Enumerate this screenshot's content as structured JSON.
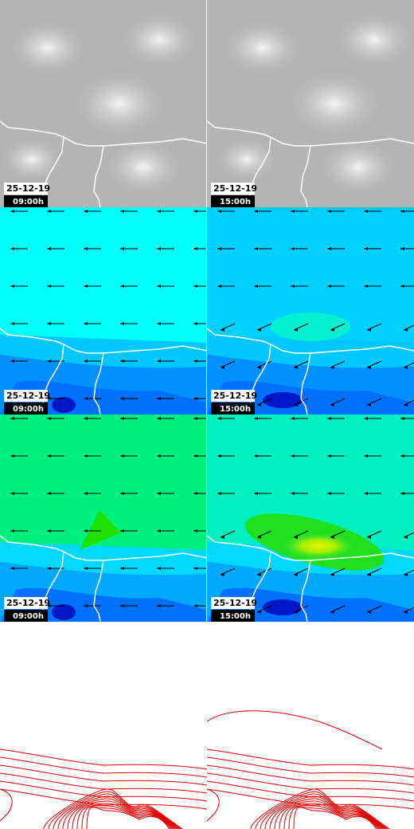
{
  "panels": [
    {
      "date": "25-12-19",
      "time": "09:00h"
    },
    {
      "date": "25-12-19",
      "time": "15:00h"
    },
    {
      "date": "25-12-19",
      "time": "09:00h"
    },
    {
      "date": "25-12-19",
      "time": "15:00h"
    },
    {
      "date": "25-12-19",
      "time": "09:00h"
    },
    {
      "date": "25-12-19",
      "time": "15:00h"
    }
  ]
}
